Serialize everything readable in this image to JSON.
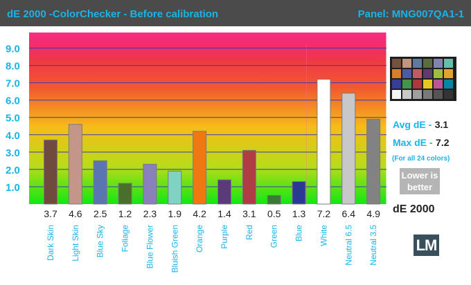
{
  "header": {
    "title": "dE 2000 -ColorChecker  - Before calibration",
    "panel": "Panel: MNG007QA1-1"
  },
  "colors": {
    "header_bg": "#4b4b4b",
    "header_text": "#1ab3e8",
    "axis_text": "#1ab3e8",
    "gradient_top": "#ec1860",
    "gradient_mid": "#f6bc18",
    "gradient_bottom": "#12e612",
    "gridline": "#3a3aaa"
  },
  "sidebar": {
    "avg_label": "Avg dE -",
    "avg_value": "3.1",
    "max_label": "Max dE -",
    "max_value": "7.2",
    "note": "(For all 24 colors)",
    "lower_is_better": "Lower is better",
    "unit": "dE 2000",
    "logo": "LM"
  },
  "chart_data": {
    "type": "bar",
    "title": "dE 2000 -ColorChecker  - Before calibration",
    "categories": [
      "Dark Skin",
      "Light Skin",
      "Blue Sky",
      "Foliage",
      "Blue Flower",
      "Bluish Green",
      "Orange",
      "Purple",
      "Red",
      "Green",
      "Blue",
      "White",
      "Neutral 6.5",
      "Neutral 3.5"
    ],
    "values": [
      3.7,
      4.6,
      2.5,
      1.2,
      2.3,
      1.9,
      4.2,
      1.4,
      3.1,
      0.5,
      1.3,
      7.2,
      6.4,
      4.9
    ],
    "value_labels": [
      "3.7",
      "4.6",
      "2.5",
      "1.2",
      "2.3",
      "1.9",
      "4.2",
      "1.4",
      "3.1",
      "0.5",
      "1.3",
      "7.2",
      "6.4",
      "4.9"
    ],
    "bar_colors": [
      "#6e4b3c",
      "#c4968a",
      "#5a76b2",
      "#4a6e2c",
      "#8a80bc",
      "#80d2c4",
      "#f07812",
      "#5a3a78",
      "#b03c46",
      "#3a7a36",
      "#2a3a94",
      "#ffffff",
      "#c8c8c8",
      "#828282"
    ],
    "yticks": [
      "1.0",
      "2.0",
      "3.0",
      "4.0",
      "5.0",
      "6.0",
      "7.0",
      "8.0",
      "9.0"
    ],
    "ylim": [
      0,
      9.9
    ],
    "grid": true,
    "xlabel": "",
    "ylabel": ""
  },
  "checker": {
    "colors": [
      [
        "#73523f",
        "#c49482",
        "#5f7a9c",
        "#5a6c40",
        "#8383af",
        "#67bdaa"
      ],
      [
        "#d67e2c",
        "#4c5ba6",
        "#c15a63",
        "#5e3c6c",
        "#9dbc40",
        "#e0a32e"
      ],
      [
        "#383d96",
        "#469449",
        "#af363c",
        "#e7c71f",
        "#bb5695",
        "#0885a1"
      ],
      [
        "#f3f3f2",
        "#c8c8c8",
        "#a0a0a0",
        "#7a7a79",
        "#555555",
        "#343434"
      ]
    ]
  }
}
